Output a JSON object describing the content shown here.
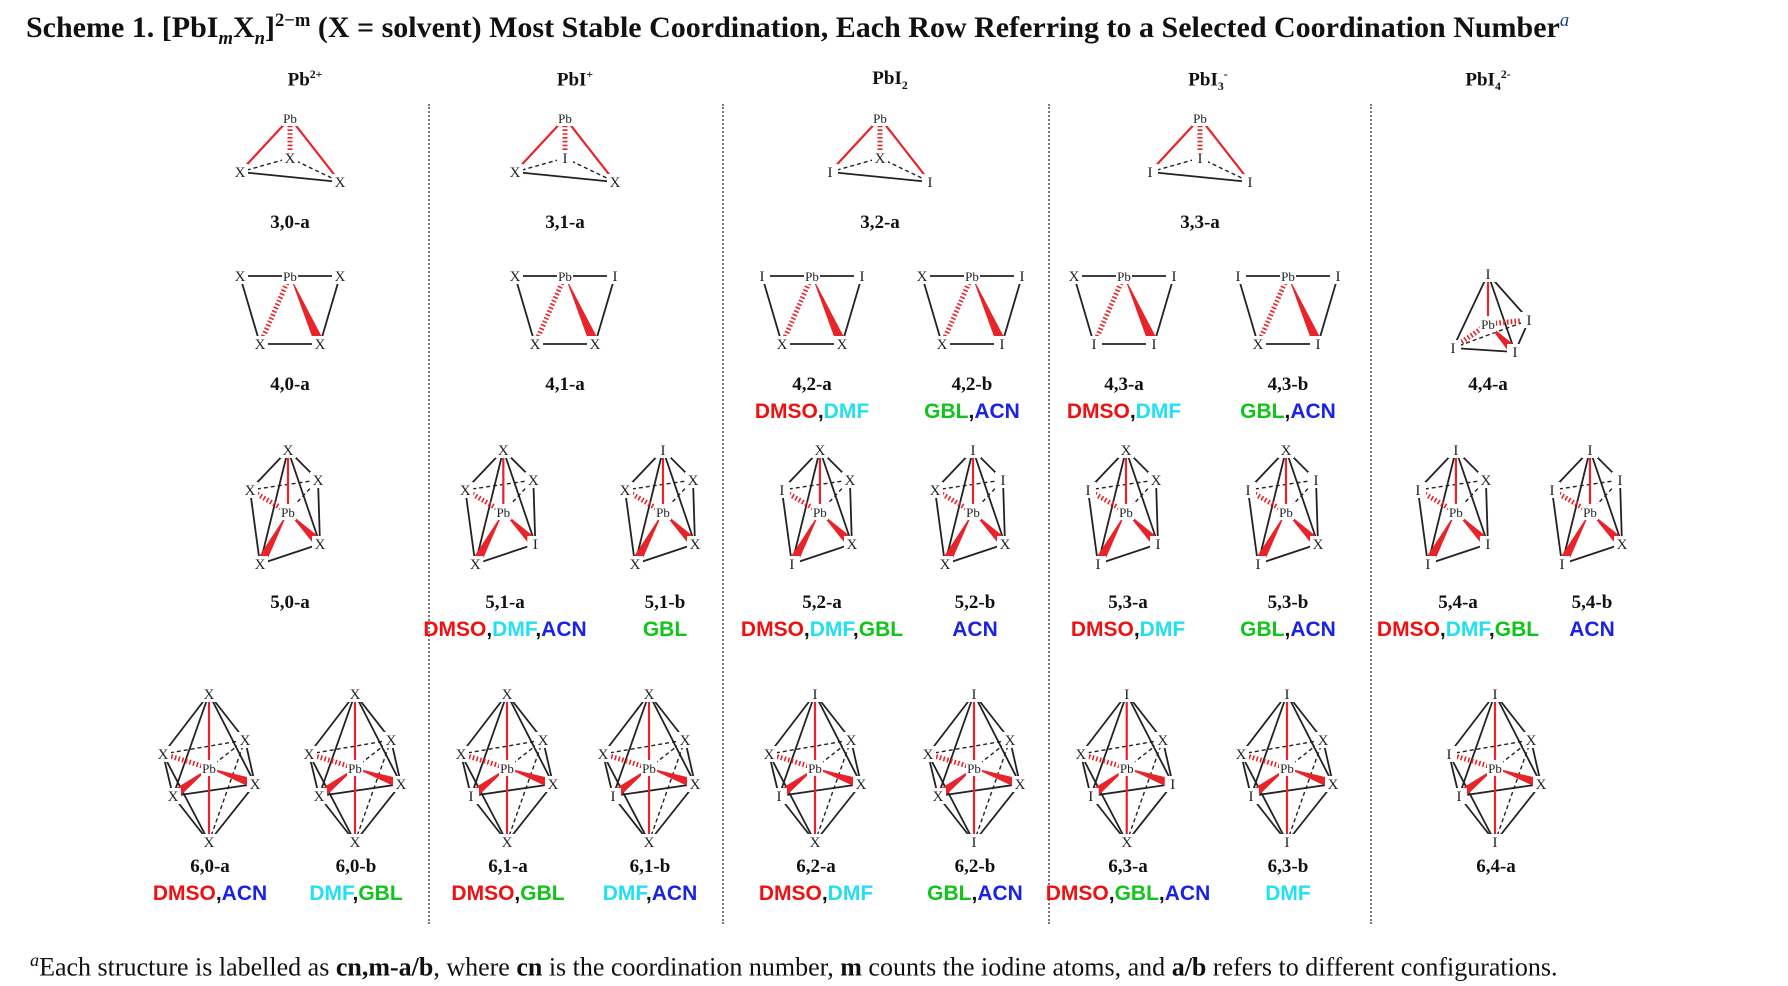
{
  "caption": {
    "prefix": "Scheme 1. [PbI",
    "sub_m": "m",
    "x": "X",
    "sub_n": "n",
    "close": "]",
    "sup_charge": "2−m",
    "rest": " (X = solvent) Most Stable Coordination, Each Row Referring to a Selected Coordination Number",
    "note_mark": "a"
  },
  "columns": [
    {
      "base": "Pb",
      "sub": "",
      "sup": "2+"
    },
    {
      "base": "PbI",
      "sub": "",
      "sup": "+"
    },
    {
      "base": "PbI",
      "sub": "2",
      "sup": ""
    },
    {
      "base": "PbI",
      "sub": "3",
      "sup": "-"
    },
    {
      "base": "PbI",
      "sub": "4",
      "sup": "2-"
    }
  ],
  "colors": {
    "DMSO": "#ee1111",
    "DMF": "#22e0f0",
    "ACN": "#1a22e6",
    "GBL": "#11c41a",
    "bond_red": "#e8232a"
  },
  "structures": [
    {
      "id": "3,0-a",
      "shape": "tri",
      "atoms": [
        "Pb",
        "X",
        "X",
        "X"
      ],
      "solvents": []
    },
    {
      "id": "3,1-a",
      "shape": "tri",
      "atoms": [
        "Pb",
        "X",
        "I",
        "X"
      ],
      "solvents": []
    },
    {
      "id": "3,2-a",
      "shape": "tri",
      "atoms": [
        "Pb",
        "I",
        "X",
        "I"
      ],
      "solvents": []
    },
    {
      "id": "3,3-a",
      "shape": "tri",
      "atoms": [
        "Pb",
        "I",
        "I",
        "I"
      ],
      "solvents": []
    },
    {
      "id": "4,0-a",
      "shape": "sq",
      "atoms": [
        "Pb",
        "X",
        "X",
        "X",
        "X"
      ],
      "solvents": []
    },
    {
      "id": "4,1-a",
      "shape": "sq",
      "atoms": [
        "Pb",
        "X",
        "I",
        "X",
        "X"
      ],
      "solvents": []
    },
    {
      "id": "4,2-a",
      "shape": "sq",
      "atoms": [
        "Pb",
        "I",
        "I",
        "X",
        "X"
      ],
      "solvents": [
        "DMSO",
        "DMF"
      ]
    },
    {
      "id": "4,2-b",
      "shape": "sq",
      "atoms": [
        "Pb",
        "X",
        "I",
        "X",
        "I"
      ],
      "solvents": [
        "GBL",
        "ACN"
      ]
    },
    {
      "id": "4,3-a",
      "shape": "sq",
      "atoms": [
        "Pb",
        "X",
        "I",
        "I",
        "I"
      ],
      "solvents": [
        "DMSO",
        "DMF"
      ]
    },
    {
      "id": "4,3-b",
      "shape": "sq",
      "atoms": [
        "Pb",
        "I",
        "I",
        "X",
        "I"
      ],
      "solvents": [
        "GBL",
        "ACN"
      ]
    },
    {
      "id": "4,4-a",
      "shape": "tet",
      "atoms": [
        "Pb",
        "I",
        "I",
        "I",
        "I"
      ],
      "solvents": []
    },
    {
      "id": "5,0-a",
      "shape": "tbp",
      "atoms": [
        "Pb",
        "X",
        "X",
        "X",
        "X",
        "X"
      ],
      "solvents": []
    },
    {
      "id": "5,1-a",
      "shape": "tbp",
      "atoms": [
        "Pb",
        "X",
        "X",
        "X",
        "I",
        "X"
      ],
      "solvents": [
        "DMSO",
        "DMF",
        "ACN"
      ]
    },
    {
      "id": "5,1-b",
      "shape": "tbp",
      "atoms": [
        "Pb",
        "I",
        "X",
        "X",
        "X",
        "X"
      ],
      "solvents": [
        "GBL"
      ]
    },
    {
      "id": "5,2-a",
      "shape": "tbp",
      "atoms": [
        "Pb",
        "X",
        "I",
        "X",
        "X",
        "I"
      ],
      "solvents": [
        "DMSO",
        "DMF",
        "GBL"
      ]
    },
    {
      "id": "5,2-b",
      "shape": "tbp",
      "atoms": [
        "Pb",
        "I",
        "X",
        "I",
        "X",
        "X"
      ],
      "solvents": [
        "ACN"
      ]
    },
    {
      "id": "5,3-a",
      "shape": "tbp",
      "atoms": [
        "Pb",
        "X",
        "I",
        "X",
        "I",
        "I"
      ],
      "solvents": [
        "DMSO",
        "DMF"
      ]
    },
    {
      "id": "5,3-b",
      "shape": "tbp",
      "atoms": [
        "Pb",
        "X",
        "I",
        "I",
        "X",
        "I"
      ],
      "solvents": [
        "GBL",
        "ACN"
      ]
    },
    {
      "id": "5,4-a",
      "shape": "tbp",
      "atoms": [
        "Pb",
        "I",
        "I",
        "X",
        "I",
        "I"
      ],
      "solvents": [
        "DMSO",
        "DMF",
        "GBL"
      ]
    },
    {
      "id": "5,4-b",
      "shape": "tbp",
      "atoms": [
        "Pb",
        "I",
        "I",
        "I",
        "X",
        "I"
      ],
      "solvents": [
        "ACN"
      ]
    },
    {
      "id": "6,0-a",
      "shape": "oct",
      "atoms": [
        "Pb",
        "X",
        "X",
        "X",
        "X",
        "X",
        "X"
      ],
      "solvents": [
        "DMSO",
        "ACN"
      ]
    },
    {
      "id": "6,0-b",
      "shape": "oct",
      "atoms": [
        "Pb",
        "X",
        "X",
        "X",
        "X",
        "X",
        "X"
      ],
      "solvents": [
        "DMF",
        "GBL"
      ]
    },
    {
      "id": "6,1-a",
      "shape": "oct",
      "atoms": [
        "Pb",
        "X",
        "X",
        "X",
        "X",
        "I",
        "X"
      ],
      "solvents": [
        "DMSO",
        "GBL"
      ]
    },
    {
      "id": "6,1-b",
      "shape": "oct",
      "atoms": [
        "Pb",
        "X",
        "X",
        "X",
        "X",
        "I",
        "X"
      ],
      "solvents": [
        "DMF",
        "ACN"
      ]
    },
    {
      "id": "6,2-a",
      "shape": "oct",
      "atoms": [
        "Pb",
        "I",
        "X",
        "X",
        "X",
        "I",
        "X"
      ],
      "solvents": [
        "DMSO",
        "DMF"
      ]
    },
    {
      "id": "6,2-b",
      "shape": "oct",
      "atoms": [
        "Pb",
        "I",
        "X",
        "X",
        "X",
        "X",
        "I"
      ],
      "solvents": [
        "GBL",
        "ACN"
      ]
    },
    {
      "id": "6,3-a",
      "shape": "oct",
      "atoms": [
        "Pb",
        "I",
        "X",
        "X",
        "I",
        "I",
        "X"
      ],
      "solvents": [
        "DMSO",
        "GBL",
        "ACN"
      ]
    },
    {
      "id": "6,3-b",
      "shape": "oct",
      "atoms": [
        "Pb",
        "I",
        "X",
        "X",
        "X",
        "I",
        "I"
      ],
      "solvents": [
        "DMF"
      ]
    },
    {
      "id": "6,4-a",
      "shape": "oct",
      "atoms": [
        "Pb",
        "I",
        "I",
        "X",
        "X",
        "I",
        "I"
      ],
      "solvents": []
    }
  ],
  "footnote": {
    "mark": "a",
    "t1": "Each structure is labelled as ",
    "b1": "cn,m-a/b",
    "t2": ", where ",
    "b2": "cn",
    "t3": " is the coordination number, ",
    "b3": "m",
    "t4": " counts the iodine atoms, and ",
    "b4": "a/b",
    "t5": " refers to different configurations."
  }
}
